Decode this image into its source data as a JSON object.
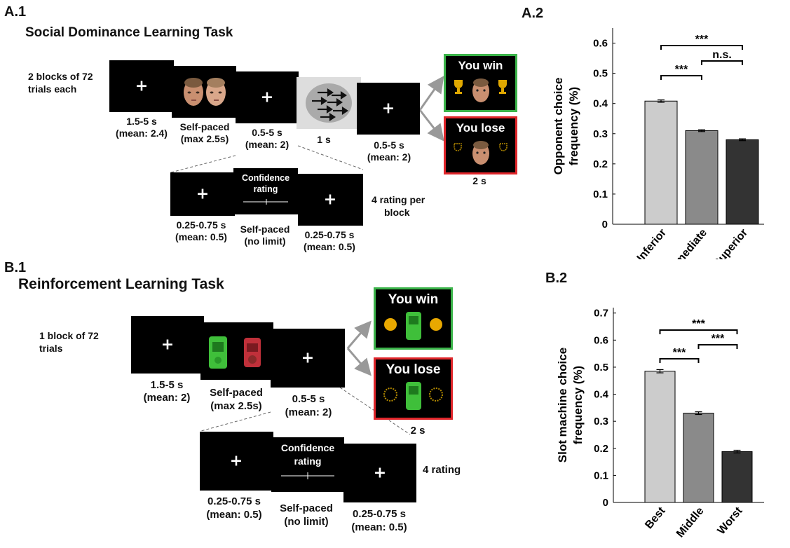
{
  "panels": {
    "a1_label": "A.1",
    "a1_title": "Social Dominance Learning Task",
    "a2_label": "A.2",
    "b1_label": "B.1",
    "b1_title": "Reinforcement Learning Task",
    "b2_label": "B.2"
  },
  "task_a": {
    "blocks_text": [
      "2 blocks of 72",
      "trials each"
    ],
    "captions": {
      "fixation1": [
        "1.5-5 s",
        "(mean: 2.4)"
      ],
      "choice": [
        "Self-paced",
        "(max 2.5s)"
      ],
      "fixation2": [
        "0.5-5 s",
        "(mean: 2)"
      ],
      "dots": [
        "1 s"
      ],
      "fixation3": [
        "0.5-5 s",
        "(mean: 2)"
      ],
      "feedback": [
        "2 s"
      ]
    },
    "win_text": "You win",
    "lose_text": "You lose",
    "win_border": "#3bb44a",
    "lose_border": "#e0262b",
    "rating": {
      "screen_title": [
        "Confidence",
        "rating"
      ],
      "cap1": [
        "0.25-0.75 s",
        "(mean: 0.5)"
      ],
      "cap2": [
        "Self-paced",
        "(no limit)"
      ],
      "cap3": [
        "0.25-0.75 s",
        "(mean: 0.5)"
      ],
      "side": [
        "4 rating per",
        "block"
      ]
    }
  },
  "task_b": {
    "blocks_text": [
      "1 block of 72",
      "trials"
    ],
    "captions": {
      "fixation1": [
        "1.5-5 s",
        "(mean: 2)"
      ],
      "choice": [
        "Self-paced",
        "(max 2.5s)"
      ],
      "fixation2": [
        "0.5-5 s",
        "(mean: 2)"
      ],
      "feedback": [
        "2 s"
      ]
    },
    "win_text": "You win",
    "lose_text": "You lose",
    "rating": {
      "screen_title": [
        "Confidence",
        "rating"
      ],
      "cap1": [
        "0.25-0.75 s",
        "(mean: 0.5)"
      ],
      "cap2": [
        "Self-paced",
        "(no limit)"
      ],
      "cap3": [
        "0.25-0.75 s",
        "(mean: 0.5)"
      ],
      "side": [
        "4 rating"
      ]
    }
  },
  "chart_data": [
    {
      "type": "bar",
      "panel": "A.2",
      "categories": [
        "Inferior",
        "Intermediate",
        "Superior"
      ],
      "values": [
        0.408,
        0.31,
        0.28
      ],
      "errors": [
        0.004,
        0.003,
        0.003
      ],
      "colors": [
        "#cccccc",
        "#8a8a8a",
        "#333333"
      ],
      "ylabel": [
        "Opponent choice",
        "frequency (%)"
      ],
      "ylim": [
        0,
        0.65
      ],
      "yticks": [
        "0",
        "0.1",
        "0.2",
        "0.3",
        "0.4",
        "0.5",
        "0.6"
      ],
      "significance": [
        {
          "from": 0,
          "to": 1,
          "label": "***"
        },
        {
          "from": 1,
          "to": 2,
          "label": "n.s."
        },
        {
          "from": 0,
          "to": 2,
          "label": "***"
        }
      ]
    },
    {
      "type": "bar",
      "panel": "B.2",
      "categories": [
        "Best",
        "Middle",
        "Worst"
      ],
      "values": [
        0.485,
        0.33,
        0.188
      ],
      "errors": [
        0.006,
        0.005,
        0.005
      ],
      "colors": [
        "#cccccc",
        "#8a8a8a",
        "#333333"
      ],
      "ylabel": [
        "Slot machine choice",
        "frequency (%)"
      ],
      "ylim": [
        0,
        0.72
      ],
      "yticks": [
        "0",
        "0.1",
        "0.2",
        "0.3",
        "0.4",
        "0.5",
        "0.6",
        "0.7"
      ],
      "significance": [
        {
          "from": 0,
          "to": 1,
          "label": "***"
        },
        {
          "from": 1,
          "to": 2,
          "label": "***"
        },
        {
          "from": 0,
          "to": 2,
          "label": "***"
        }
      ]
    }
  ]
}
